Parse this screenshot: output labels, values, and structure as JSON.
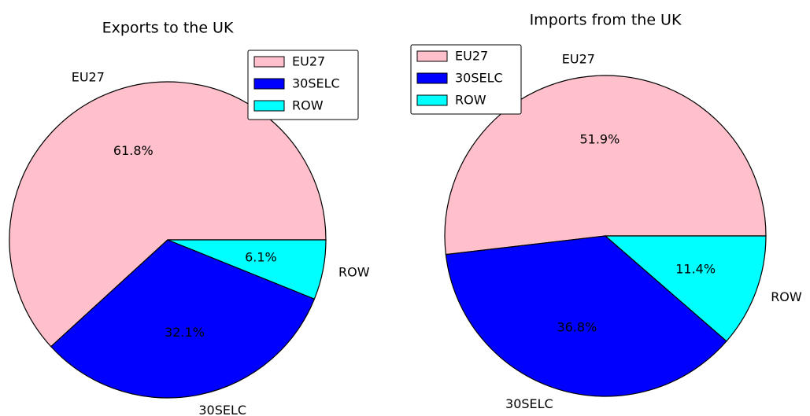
{
  "chart_data": [
    {
      "type": "pie",
      "title": "Exports to the UK",
      "categories": [
        "EU27",
        "30SELC",
        "ROW"
      ],
      "values": [
        61.8,
        32.1,
        6.1
      ],
      "value_labels": [
        "61.8%",
        "32.1%",
        "6.1%"
      ],
      "colors": [
        "#ffc0cb",
        "#0000ff",
        "#00ffff"
      ],
      "legend": "upper right"
    },
    {
      "type": "pie",
      "title": "Imports from the UK",
      "categories": [
        "EU27",
        "30SELC",
        "ROW"
      ],
      "values": [
        51.9,
        36.8,
        11.4
      ],
      "value_labels": [
        "51.9%",
        "36.8%",
        "11.4%"
      ],
      "colors": [
        "#ffc0cb",
        "#0000ff",
        "#00ffff"
      ],
      "legend": "upper left"
    }
  ]
}
